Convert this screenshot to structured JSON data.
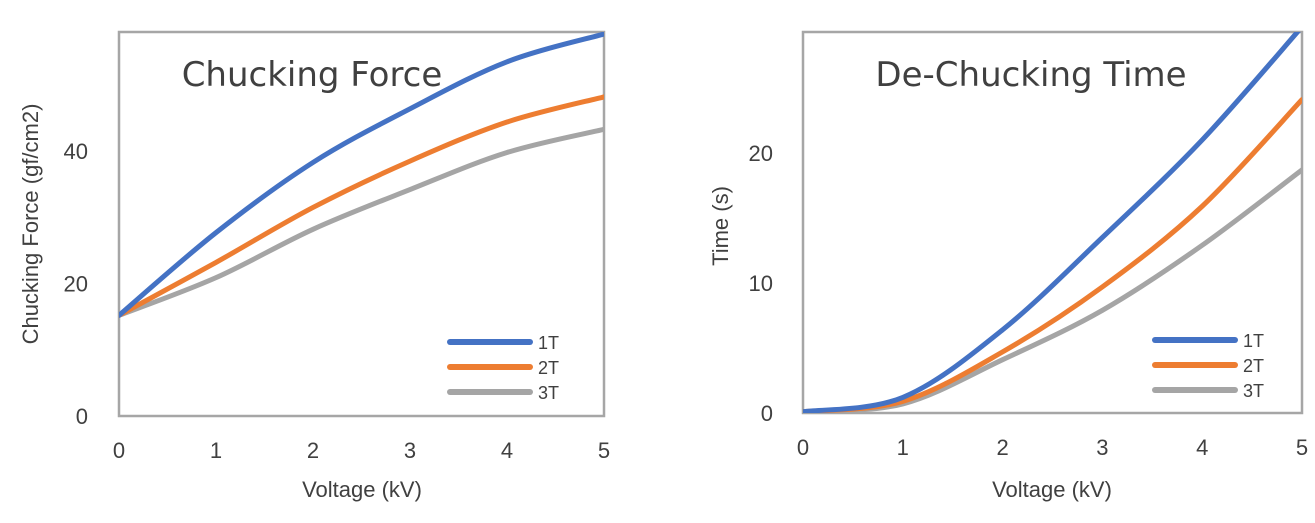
{
  "chart_data": [
    {
      "type": "line",
      "title": "Chucking Force",
      "xlabel": "Voltage (kV)",
      "ylabel": "Chucking Force (gf/cm2)",
      "x": [
        0,
        1,
        2,
        3,
        4,
        5
      ],
      "xlim": [
        0,
        5
      ],
      "ylim": [
        0,
        58
      ],
      "xticks": [
        "0",
        "1",
        "2",
        "3",
        "4",
        "5"
      ],
      "yticks": [
        0,
        20,
        40
      ],
      "ytick_labels": [
        "0",
        "20",
        "40"
      ],
      "grid": false,
      "legend_position": "bottom-right",
      "series": [
        {
          "name": "1T",
          "color": "#4472c4",
          "values": [
            15.2,
            27.7,
            38.3,
            46.4,
            53.5,
            57.7
          ]
        },
        {
          "name": "2T",
          "color": "#ed7d31",
          "values": [
            15.2,
            23.2,
            31.5,
            38.5,
            44.4,
            48.2
          ]
        },
        {
          "name": "3T",
          "color": "#a5a5a5",
          "values": [
            15.2,
            20.9,
            28.2,
            34.2,
            39.8,
            43.3
          ]
        }
      ]
    },
    {
      "type": "line",
      "title": "De-Chucking Time",
      "xlabel": "Voltage (kV)",
      "ylabel": "Time (s)",
      "x": [
        0,
        1,
        2,
        3,
        4,
        5
      ],
      "xlim": [
        0,
        5
      ],
      "ylim": [
        0,
        29.3
      ],
      "xticks": [
        "0",
        "1",
        "2",
        "3",
        "4",
        "5"
      ],
      "yticks": [
        0,
        10,
        20
      ],
      "ytick_labels": [
        "0",
        "10",
        "20"
      ],
      "grid": false,
      "legend_position": "bottom-right",
      "series": [
        {
          "name": "1T",
          "color": "#4472c4",
          "values": [
            0.1,
            1.2,
            6.4,
            13.5,
            21.0,
            29.7
          ]
        },
        {
          "name": "2T",
          "color": "#ed7d31",
          "values": [
            0.1,
            0.9,
            4.7,
            9.7,
            15.9,
            24.1
          ]
        },
        {
          "name": "3T",
          "color": "#a5a5a5",
          "values": [
            0.1,
            0.7,
            4.1,
            7.9,
            12.9,
            18.7
          ]
        }
      ]
    }
  ]
}
